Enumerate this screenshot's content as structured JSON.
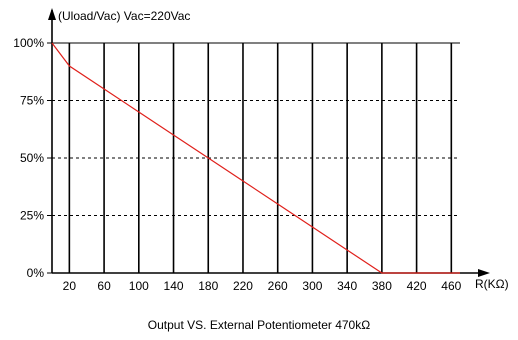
{
  "chart_data": {
    "type": "line",
    "ylabel": "(Uload/Vac) Vac=220Vac",
    "xlabel": "R(KΩ)",
    "caption": "Output  VS. External Potentiometer 470kΩ",
    "xlim": [
      0,
      470
    ],
    "ylim": [
      0,
      100
    ],
    "x_ticks": [
      20,
      60,
      100,
      140,
      180,
      220,
      260,
      300,
      340,
      380,
      420,
      460
    ],
    "x_tick_labels": [
      "20",
      "60",
      "100",
      "140",
      "180",
      "220",
      "260",
      "300",
      "340",
      "380",
      "420",
      "460"
    ],
    "y_ticks": [
      0,
      25,
      50,
      75,
      100
    ],
    "y_tick_labels": [
      "0%",
      "25%",
      "50%",
      "75%",
      "100%"
    ],
    "grid": true,
    "series": [
      {
        "x": [
          0,
          20,
          60,
          100,
          140,
          180,
          220,
          260,
          300,
          340,
          380,
          470
        ],
        "y": [
          100,
          90,
          80,
          70,
          60,
          50,
          40,
          30,
          20,
          10,
          0,
          0
        ],
        "color": "#e0201b"
      }
    ]
  }
}
